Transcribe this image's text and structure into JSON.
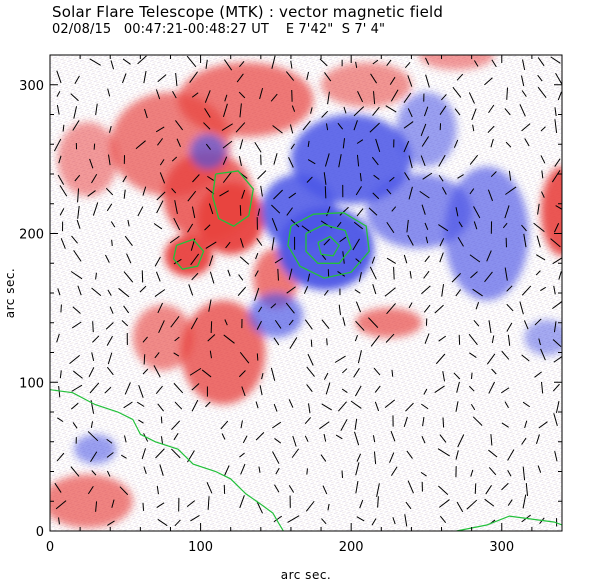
{
  "chart_data": {
    "type": "heatmap",
    "title": "Solar Flare Telescope (MTK) : vector magnetic field",
    "subtitle": {
      "date": "02/08/15",
      "time_range": "00:47:21-00:48:27 UT",
      "position": "E 7'42\"  S 7' 4\""
    },
    "xlabel": "arc sec.",
    "ylabel": "arc sec.",
    "xlim": [
      0,
      340
    ],
    "ylim": [
      0,
      320
    ],
    "x_ticks": [
      0,
      100,
      200,
      300
    ],
    "y_ticks": [
      0,
      100,
      200,
      300
    ],
    "colors": {
      "positive": "#e8423f",
      "negative": "#4b55e6",
      "contour": "#22c03a",
      "vector": "#000000"
    },
    "positive_regions": [
      {
        "x": 120,
        "y": 210,
        "rx": 22,
        "ry": 24,
        "strength": 1.0
      },
      {
        "x": 92,
        "y": 185,
        "rx": 16,
        "ry": 14,
        "strength": 1.0
      },
      {
        "x": 105,
        "y": 225,
        "rx": 30,
        "ry": 30,
        "strength": 0.75
      },
      {
        "x": 80,
        "y": 260,
        "rx": 40,
        "ry": 35,
        "strength": 0.55
      },
      {
        "x": 130,
        "y": 290,
        "rx": 45,
        "ry": 25,
        "strength": 0.6
      },
      {
        "x": 210,
        "y": 300,
        "rx": 30,
        "ry": 15,
        "strength": 0.35
      },
      {
        "x": 115,
        "y": 120,
        "rx": 28,
        "ry": 35,
        "strength": 0.7
      },
      {
        "x": 75,
        "y": 130,
        "rx": 20,
        "ry": 22,
        "strength": 0.45
      },
      {
        "x": 150,
        "y": 170,
        "rx": 15,
        "ry": 20,
        "strength": 0.6
      },
      {
        "x": 225,
        "y": 140,
        "rx": 22,
        "ry": 10,
        "strength": 0.55
      },
      {
        "x": 340,
        "y": 215,
        "rx": 14,
        "ry": 30,
        "strength": 0.9
      },
      {
        "x": 25,
        "y": 20,
        "rx": 30,
        "ry": 18,
        "strength": 0.5
      },
      {
        "x": 270,
        "y": 320,
        "rx": 25,
        "ry": 10,
        "strength": 0.3
      },
      {
        "x": 25,
        "y": 250,
        "rx": 20,
        "ry": 25,
        "strength": 0.3
      }
    ],
    "negative_regions": [
      {
        "x": 183,
        "y": 190,
        "rx": 32,
        "ry": 28,
        "strength": 1.0
      },
      {
        "x": 200,
        "y": 250,
        "rx": 40,
        "ry": 30,
        "strength": 0.85
      },
      {
        "x": 165,
        "y": 215,
        "rx": 25,
        "ry": 25,
        "strength": 0.85
      },
      {
        "x": 245,
        "y": 215,
        "rx": 35,
        "ry": 25,
        "strength": 0.5
      },
      {
        "x": 290,
        "y": 200,
        "rx": 28,
        "ry": 45,
        "strength": 0.5
      },
      {
        "x": 105,
        "y": 255,
        "rx": 12,
        "ry": 12,
        "strength": 0.5
      },
      {
        "x": 150,
        "y": 145,
        "rx": 18,
        "ry": 15,
        "strength": 0.55
      },
      {
        "x": 250,
        "y": 270,
        "rx": 20,
        "ry": 25,
        "strength": 0.35
      },
      {
        "x": 30,
        "y": 55,
        "rx": 14,
        "ry": 10,
        "strength": 0.35
      },
      {
        "x": 330,
        "y": 130,
        "rx": 15,
        "ry": 12,
        "strength": 0.25
      }
    ],
    "contours": [
      [
        [
          110,
          240
        ],
        [
          125,
          242
        ],
        [
          135,
          230
        ],
        [
          132,
          212
        ],
        [
          122,
          205
        ],
        [
          112,
          210
        ],
        [
          108,
          225
        ],
        [
          110,
          240
        ]
      ],
      [
        [
          84,
          192
        ],
        [
          95,
          196
        ],
        [
          102,
          188
        ],
        [
          98,
          178
        ],
        [
          88,
          176
        ],
        [
          82,
          183
        ],
        [
          84,
          192
        ]
      ],
      [
        [
          160,
          205
        ],
        [
          175,
          213
        ],
        [
          195,
          214
        ],
        [
          210,
          205
        ],
        [
          212,
          188
        ],
        [
          200,
          174
        ],
        [
          182,
          170
        ],
        [
          166,
          178
        ],
        [
          158,
          192
        ],
        [
          160,
          205
        ]
      ],
      [
        [
          170,
          200
        ],
        [
          182,
          206
        ],
        [
          196,
          202
        ],
        [
          200,
          190
        ],
        [
          192,
          180
        ],
        [
          178,
          180
        ],
        [
          170,
          188
        ],
        [
          170,
          200
        ]
      ],
      [
        [
          178,
          194
        ],
        [
          186,
          198
        ],
        [
          192,
          192
        ],
        [
          188,
          185
        ],
        [
          180,
          186
        ],
        [
          178,
          194
        ]
      ]
    ],
    "limb_line": [
      [
        0,
        95
      ],
      [
        15,
        93
      ],
      [
        30,
        85
      ],
      [
        45,
        80
      ],
      [
        55,
        75
      ],
      [
        60,
        65
      ],
      [
        70,
        60
      ],
      [
        85,
        55
      ],
      [
        95,
        45
      ],
      [
        110,
        40
      ],
      [
        120,
        35
      ],
      [
        130,
        25
      ],
      [
        140,
        18
      ],
      [
        148,
        12
      ],
      [
        152,
        5
      ],
      [
        155,
        0
      ]
    ],
    "limb_line_right": [
      [
        270,
        0
      ],
      [
        290,
        4
      ],
      [
        305,
        10
      ],
      [
        320,
        8
      ],
      [
        335,
        6
      ],
      [
        340,
        4
      ]
    ]
  }
}
